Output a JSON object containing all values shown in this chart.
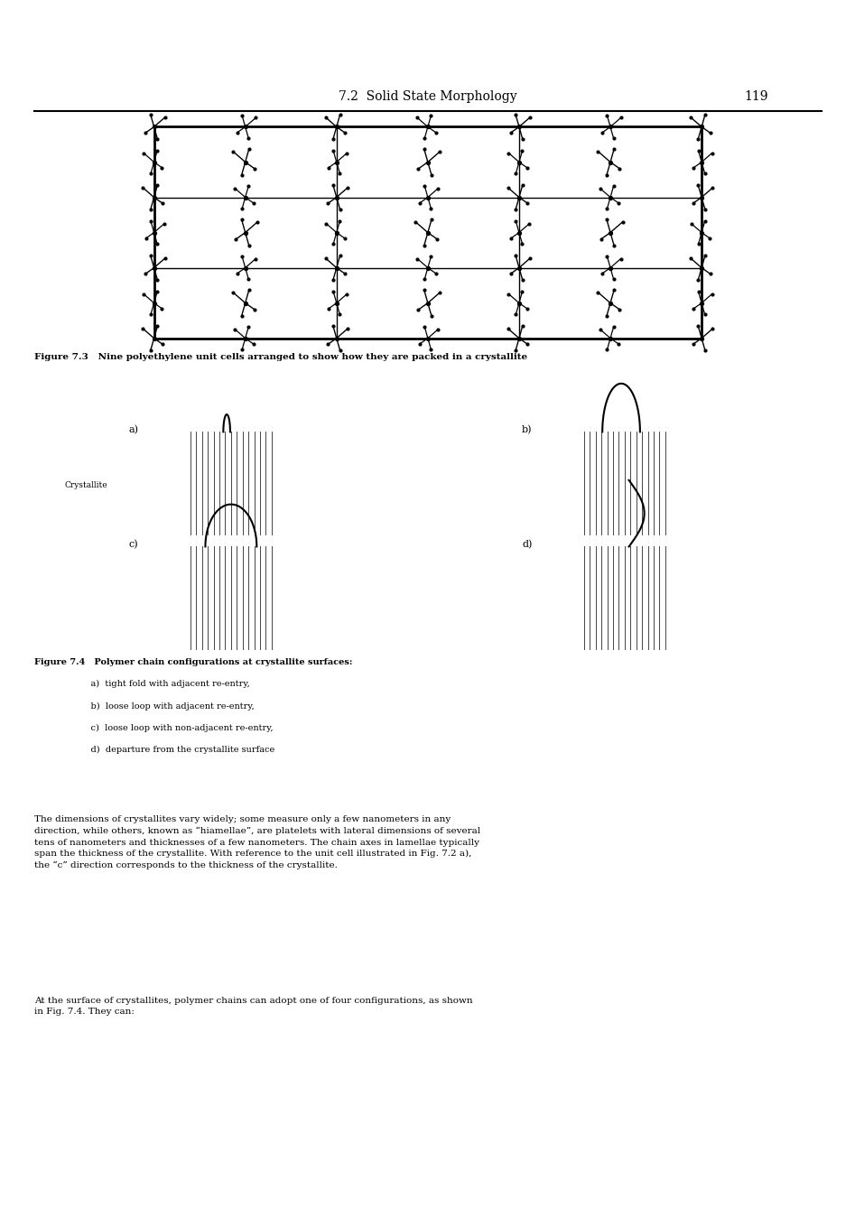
{
  "page_header": "7.2  Solid State Morphology",
  "page_number": "119",
  "fig73_caption": "Figure 7.3   Nine polyethylene unit cells arranged to show how they are packed in a crystallite",
  "fig74_caption_title": "Figure 7.4   Polymer chain configurations at crystallite surfaces:",
  "fig74_items": [
    "a)  tight fold with adjacent re-entry,",
    "b)  loose loop with adjacent re-entry,",
    "c)  loose loop with non-adjacent re-entry,",
    "d)  departure from the crystallite surface"
  ],
  "body_text_1": "The dimensions of crystallites vary widely; some measure only a few nanometers in any\ndirection, while others, known as “hiamellae”, are platelets with lateral dimensions of several\ntens of nanometers and thicknesses of a few nanometers. The chain axes in lamellae typically\nspan the thickness of the crystallite. With reference to the unit cell illustrated in Fig. 7.2 a),\nthe “c” direction corresponds to the thickness of the crystallite.",
  "body_text_2": "At the surface of crystallites, polymer chains can adopt one of four configurations, as shown\nin Fig. 7.4. They can:",
  "background_color": "#ffffff",
  "text_color": "#000000",
  "grid_color": "#000000",
  "atom_color": "#000000"
}
